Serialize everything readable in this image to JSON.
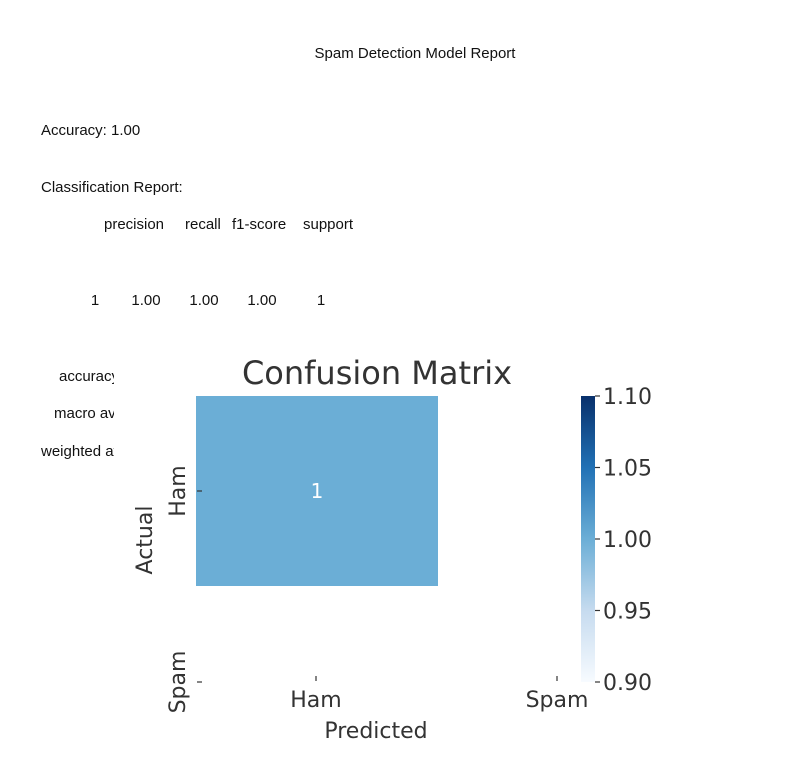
{
  "report": {
    "title": "Spam Detection Model Report",
    "accuracy_line": "Accuracy: 1.00",
    "classification_title": "Classification Report:",
    "headers": [
      "precision",
      "recall",
      "f1-score",
      "support"
    ],
    "row": {
      "label": "1",
      "precision": "1.00",
      "recall": "1.00",
      "f1": "1.00",
      "support": "1"
    },
    "summary_rows": [
      "accuracy",
      "macro avg",
      "weighted avg"
    ]
  },
  "chart_data": {
    "type": "heatmap",
    "title": "Confusion Matrix",
    "xlabel": "Predicted",
    "ylabel": "Actual",
    "x_categories": [
      "Ham",
      "Spam"
    ],
    "y_categories": [
      "Ham",
      "Spam"
    ],
    "values": [
      [
        1,
        null
      ],
      [
        null,
        null
      ]
    ],
    "annotations": [
      [
        "1",
        ""
      ],
      [
        "",
        ""
      ]
    ],
    "colorbar": {
      "range": [
        0.9,
        1.1
      ],
      "ticks": [
        "0.90",
        "0.95",
        "1.00",
        "1.05",
        "1.10"
      ],
      "colormap": "Blues"
    },
    "cell_color": "#6baed6",
    "colorbar_stops": [
      "#f7fbff",
      "#c6dbef",
      "#6baed6",
      "#2171b5",
      "#08306b"
    ]
  }
}
